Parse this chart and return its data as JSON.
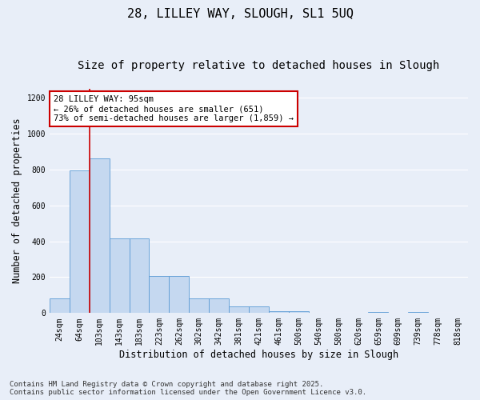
{
  "title1": "28, LILLEY WAY, SLOUGH, SL1 5UQ",
  "title2": "Size of property relative to detached houses in Slough",
  "xlabel": "Distribution of detached houses by size in Slough",
  "ylabel": "Number of detached properties",
  "categories": [
    "24sqm",
    "64sqm",
    "103sqm",
    "143sqm",
    "183sqm",
    "223sqm",
    "262sqm",
    "302sqm",
    "342sqm",
    "381sqm",
    "421sqm",
    "461sqm",
    "500sqm",
    "540sqm",
    "580sqm",
    "620sqm",
    "659sqm",
    "699sqm",
    "739sqm",
    "778sqm",
    "818sqm"
  ],
  "values": [
    80,
    795,
    860,
    415,
    415,
    205,
    205,
    80,
    80,
    35,
    35,
    10,
    10,
    0,
    2,
    0,
    5,
    0,
    5,
    0,
    0
  ],
  "bar_color": "#c5d8f0",
  "bar_edge_color": "#5b9bd5",
  "vline_x_index": 1,
  "vline_color": "#cc0000",
  "annotation_text": "28 LILLEY WAY: 95sqm\n← 26% of detached houses are smaller (651)\n73% of semi-detached houses are larger (1,859) →",
  "annotation_box_color": "#ffffff",
  "annotation_box_edge": "#cc0000",
  "ylim": [
    0,
    1250
  ],
  "yticks": [
    0,
    200,
    400,
    600,
    800,
    1000,
    1200
  ],
  "background_color": "#e8eef8",
  "grid_color": "#ffffff",
  "footer_line1": "Contains HM Land Registry data © Crown copyright and database right 2025.",
  "footer_line2": "Contains public sector information licensed under the Open Government Licence v3.0.",
  "title_fontsize": 11,
  "subtitle_fontsize": 10,
  "axis_label_fontsize": 8.5,
  "tick_fontsize": 7,
  "annotation_fontsize": 7.5,
  "footer_fontsize": 6.5
}
